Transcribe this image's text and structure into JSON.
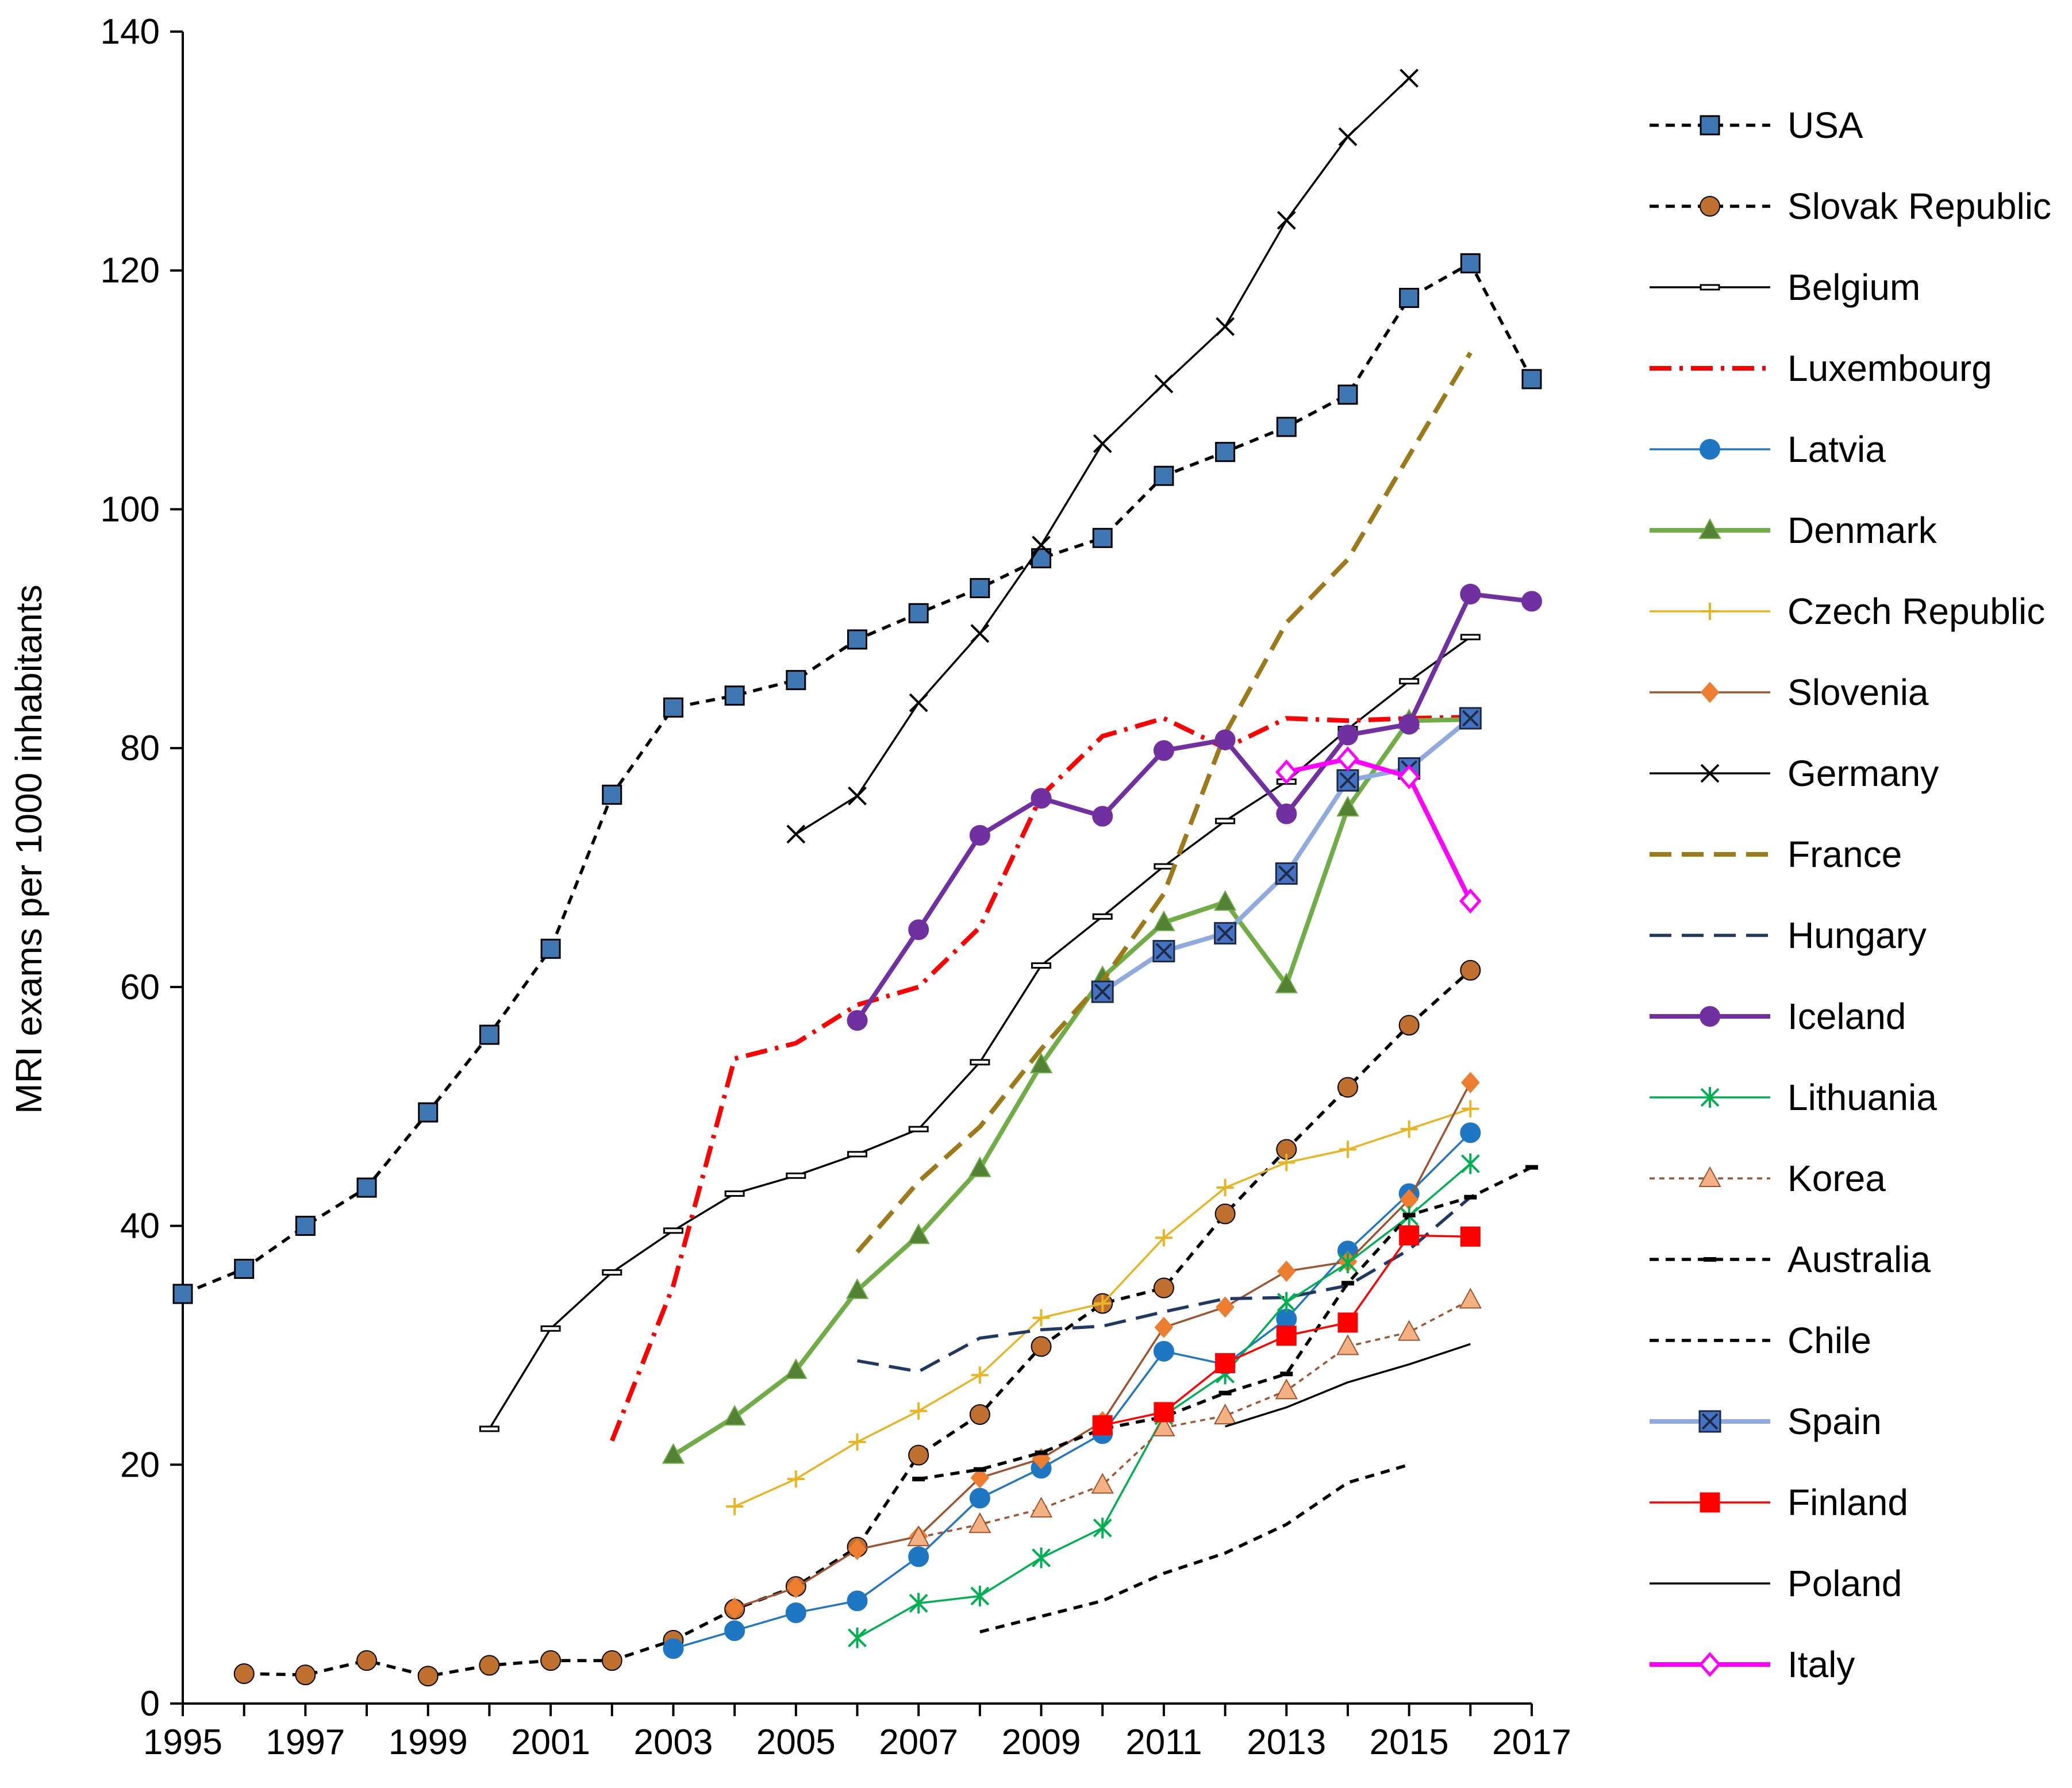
{
  "chart_data": {
    "type": "line",
    "title": "",
    "xlabel": "",
    "ylabel": "MRI exams per 1000 inhabitants",
    "xlim": [
      1995,
      2017
    ],
    "ylim": [
      0,
      140
    ],
    "xticks": [
      1995,
      1997,
      1999,
      2001,
      2003,
      2005,
      2007,
      2009,
      2011,
      2013,
      2015,
      2017
    ],
    "yticks": [
      0,
      20,
      40,
      60,
      80,
      100,
      120,
      140
    ],
    "grid": false,
    "legend": "right",
    "series": [
      {
        "name": "USA",
        "color": "#000000",
        "marker_color": "#3f77b3",
        "dash": "dash",
        "marker": "square",
        "line_width": "medium",
        "points": [
          [
            1995,
            34.3
          ],
          [
            1996,
            36.4
          ],
          [
            1997,
            40.0
          ],
          [
            1998,
            43.2
          ],
          [
            1999,
            49.5
          ],
          [
            2000,
            56.0
          ],
          [
            2001,
            63.2
          ],
          [
            2002,
            76.1
          ],
          [
            2003,
            83.4
          ],
          [
            2004,
            84.4
          ],
          [
            2005,
            85.7
          ],
          [
            2006,
            89.1
          ],
          [
            2007,
            91.3
          ],
          [
            2008,
            93.4
          ],
          [
            2009,
            95.9
          ],
          [
            2010,
            97.6
          ],
          [
            2011,
            102.8
          ],
          [
            2012,
            104.8
          ],
          [
            2013,
            106.9
          ],
          [
            2014,
            109.6
          ],
          [
            2015,
            117.7
          ],
          [
            2016,
            120.6
          ],
          [
            2017,
            110.9
          ]
        ]
      },
      {
        "name": "Slovak Republic",
        "color": "#000000",
        "marker_color": "#c0702e",
        "dash": "dash",
        "marker": "circle",
        "line_width": "medium",
        "points": [
          [
            1996,
            2.5
          ],
          [
            1997,
            2.4
          ],
          [
            1998,
            3.6
          ],
          [
            1999,
            2.3
          ],
          [
            2000,
            3.2
          ],
          [
            2001,
            3.6
          ],
          [
            2002,
            3.6
          ],
          [
            2003,
            5.3
          ],
          [
            2004,
            7.9
          ],
          [
            2005,
            9.8
          ],
          [
            2006,
            13.1
          ],
          [
            2007,
            20.8
          ],
          [
            2008,
            24.2
          ],
          [
            2009,
            29.9
          ],
          [
            2010,
            33.5
          ],
          [
            2011,
            34.8
          ],
          [
            2012,
            41.0
          ],
          [
            2013,
            46.4
          ],
          [
            2014,
            51.6
          ],
          [
            2015,
            56.8
          ],
          [
            2016,
            61.4
          ]
        ]
      },
      {
        "name": "Belgium",
        "color": "#000000",
        "dash": "solid",
        "marker": "dash-bar",
        "line_width": "thin",
        "points": [
          [
            2000,
            23.0
          ],
          [
            2001,
            31.4
          ],
          [
            2002,
            36.1
          ],
          [
            2003,
            39.6
          ],
          [
            2004,
            42.7
          ],
          [
            2005,
            44.2
          ],
          [
            2006,
            46.0
          ],
          [
            2007,
            48.1
          ],
          [
            2008,
            53.7
          ],
          [
            2009,
            61.8
          ],
          [
            2010,
            65.9
          ],
          [
            2011,
            70.1
          ],
          [
            2012,
            73.9
          ],
          [
            2013,
            77.2
          ],
          [
            2014,
            81.6
          ],
          [
            2015,
            85.6
          ],
          [
            2016,
            89.3
          ]
        ]
      },
      {
        "name": "Luxembourg",
        "color": "#ff0000",
        "dash": "dashdot",
        "marker": "none",
        "line_width": "thick",
        "points": [
          [
            2002,
            22.0
          ],
          [
            2003,
            35.0
          ],
          [
            2004,
            54.0
          ],
          [
            2005,
            55.3
          ],
          [
            2006,
            58.5
          ],
          [
            2007,
            60.0
          ],
          [
            2008,
            65.0
          ],
          [
            2009,
            76.0
          ],
          [
            2010,
            81.0
          ],
          [
            2011,
            82.5
          ],
          [
            2012,
            80.0
          ],
          [
            2013,
            82.5
          ],
          [
            2014,
            82.3
          ],
          [
            2015,
            82.5
          ],
          [
            2016,
            82.6
          ]
        ]
      },
      {
        "name": "Latvia",
        "color": "#1f77c4",
        "dash": "solid",
        "marker": "circle",
        "line_width": "thin",
        "points": [
          [
            2003,
            4.6
          ],
          [
            2004,
            6.1
          ],
          [
            2005,
            7.6
          ],
          [
            2006,
            8.6
          ],
          [
            2007,
            12.3
          ],
          [
            2008,
            17.2
          ],
          [
            2009,
            19.7
          ],
          [
            2010,
            22.6
          ],
          [
            2011,
            29.5
          ],
          [
            2012,
            28.4
          ],
          [
            2013,
            32.2
          ],
          [
            2014,
            37.9
          ],
          [
            2015,
            42.7
          ],
          [
            2016,
            47.8
          ]
        ]
      },
      {
        "name": "Denmark",
        "color": "#70ad47",
        "marker_color": "#548235",
        "dash": "solid",
        "marker": "triangle",
        "line_width": "thick",
        "points": [
          [
            2003,
            20.8
          ],
          [
            2004,
            24.0
          ],
          [
            2005,
            27.9
          ],
          [
            2006,
            34.6
          ],
          [
            2007,
            39.2
          ],
          [
            2008,
            44.8
          ],
          [
            2009,
            53.5
          ],
          [
            2010,
            60.8
          ],
          [
            2011,
            65.4
          ],
          [
            2012,
            67.1
          ],
          [
            2013,
            60.2
          ],
          [
            2014,
            75.0
          ],
          [
            2015,
            82.3
          ],
          [
            2016,
            82.4
          ]
        ]
      },
      {
        "name": "Czech Republic",
        "color": "#e8b422",
        "dash": "solid",
        "marker": "plus",
        "line_width": "thin",
        "points": [
          [
            2004,
            16.5
          ],
          [
            2005,
            18.8
          ],
          [
            2006,
            21.9
          ],
          [
            2007,
            24.5
          ],
          [
            2008,
            27.5
          ],
          [
            2009,
            32.3
          ],
          [
            2010,
            33.5
          ],
          [
            2011,
            39.0
          ],
          [
            2012,
            43.2
          ],
          [
            2013,
            45.3
          ],
          [
            2014,
            46.4
          ],
          [
            2015,
            48.1
          ],
          [
            2016,
            49.8
          ]
        ]
      },
      {
        "name": "Slovenia",
        "color": "#a0522d",
        "marker_color": "#ed7d31",
        "dash": "solid",
        "marker": "diamond",
        "line_width": "thin",
        "points": [
          [
            2004,
            8.0
          ],
          [
            2005,
            9.7
          ],
          [
            2006,
            12.9
          ],
          [
            2007,
            14.0
          ],
          [
            2008,
            18.9
          ],
          [
            2009,
            20.5
          ],
          [
            2010,
            23.6
          ],
          [
            2011,
            31.5
          ],
          [
            2012,
            33.2
          ],
          [
            2013,
            36.2
          ],
          [
            2014,
            37.0
          ],
          [
            2015,
            42.2
          ],
          [
            2016,
            52.0
          ]
        ]
      },
      {
        "name": "Germany",
        "color": "#000000",
        "dash": "solid",
        "marker": "x",
        "line_width": "thin",
        "points": [
          [
            2005,
            72.8
          ],
          [
            2006,
            76.0
          ],
          [
            2007,
            83.8
          ],
          [
            2008,
            89.6
          ],
          [
            2009,
            97.0
          ],
          [
            2010,
            105.5
          ],
          [
            2011,
            110.5
          ],
          [
            2012,
            115.3
          ],
          [
            2013,
            124.2
          ],
          [
            2014,
            131.2
          ],
          [
            2015,
            136.1
          ]
        ]
      },
      {
        "name": "France",
        "color": "#9c7a1a",
        "dash": "longdash",
        "marker": "none",
        "line_width": "thick",
        "points": [
          [
            2006,
            37.8
          ],
          [
            2007,
            43.7
          ],
          [
            2008,
            48.3
          ],
          [
            2009,
            54.8
          ],
          [
            2010,
            60.5
          ],
          [
            2011,
            67.8
          ],
          [
            2012,
            81.2
          ],
          [
            2013,
            90.5
          ],
          [
            2014,
            95.8
          ],
          [
            2015,
            104.5
          ],
          [
            2016,
            113.1
          ]
        ]
      },
      {
        "name": "Hungary",
        "color": "#203864",
        "dash": "longdash",
        "marker": "none",
        "line_width": "medium",
        "points": [
          [
            2006,
            28.7
          ],
          [
            2007,
            27.8
          ],
          [
            2008,
            30.6
          ],
          [
            2009,
            31.3
          ],
          [
            2010,
            31.6
          ],
          [
            2011,
            32.8
          ],
          [
            2012,
            33.9
          ],
          [
            2013,
            34.0
          ],
          [
            2014,
            35.0
          ],
          [
            2015,
            38.0
          ],
          [
            2016,
            42.4
          ]
        ]
      },
      {
        "name": "Iceland",
        "color": "#7030a0",
        "dash": "solid",
        "marker": "circle",
        "line_width": "thick",
        "points": [
          [
            2006,
            57.2
          ],
          [
            2007,
            64.8
          ],
          [
            2008,
            72.7
          ],
          [
            2009,
            75.8
          ],
          [
            2010,
            74.3
          ],
          [
            2011,
            79.8
          ],
          [
            2012,
            80.7
          ],
          [
            2013,
            74.5
          ],
          [
            2014,
            81.1
          ],
          [
            2015,
            82.0
          ],
          [
            2016,
            92.9
          ],
          [
            2017,
            92.3
          ]
        ]
      },
      {
        "name": "Lithuania",
        "color": "#00b050",
        "dash": "solid",
        "marker": "asterisk",
        "line_width": "thin",
        "points": [
          [
            2006,
            5.5
          ],
          [
            2007,
            8.4
          ],
          [
            2008,
            9.0
          ],
          [
            2009,
            12.2
          ],
          [
            2010,
            14.7
          ],
          [
            2011,
            24.1
          ],
          [
            2012,
            27.6
          ],
          [
            2013,
            33.6
          ],
          [
            2014,
            36.9
          ],
          [
            2015,
            40.8
          ],
          [
            2016,
            45.2
          ]
        ]
      },
      {
        "name": "Korea",
        "color": "#a0522d",
        "marker_color": "#f4b183",
        "dash": "shortdash",
        "marker": "triangle",
        "line_width": "thin",
        "points": [
          [
            2007,
            13.9
          ],
          [
            2008,
            15.0
          ],
          [
            2009,
            16.3
          ],
          [
            2010,
            18.3
          ],
          [
            2011,
            23.1
          ],
          [
            2012,
            24.1
          ],
          [
            2013,
            26.2
          ],
          [
            2014,
            29.9
          ],
          [
            2015,
            31.1
          ],
          [
            2016,
            33.8
          ]
        ]
      },
      {
        "name": "Australia",
        "color": "#000000",
        "dash": "dash",
        "marker": "small-dash",
        "line_width": "medium",
        "points": [
          [
            2007,
            18.8
          ],
          [
            2008,
            19.6
          ],
          [
            2009,
            21.0
          ],
          [
            2010,
            23.0
          ],
          [
            2011,
            24.0
          ],
          [
            2012,
            26.0
          ],
          [
            2013,
            27.6
          ],
          [
            2014,
            35.2
          ],
          [
            2015,
            40.9
          ],
          [
            2016,
            42.4
          ],
          [
            2017,
            44.9
          ]
        ]
      },
      {
        "name": "Chile",
        "color": "#000000",
        "dash": "dash",
        "marker": "none",
        "line_width": "medium",
        "points": [
          [
            2008,
            6.0
          ],
          [
            2009,
            7.3
          ],
          [
            2010,
            8.6
          ],
          [
            2011,
            10.9
          ],
          [
            2012,
            12.6
          ],
          [
            2013,
            15.0
          ],
          [
            2014,
            18.5
          ],
          [
            2015,
            20.0
          ]
        ]
      },
      {
        "name": "Spain",
        "color": "#8faadc",
        "marker_color": "#4472c4",
        "dash": "solid",
        "marker": "square-x",
        "line_width": "thick",
        "points": [
          [
            2010,
            59.6
          ],
          [
            2011,
            63.0
          ],
          [
            2012,
            64.5
          ],
          [
            2013,
            69.5
          ],
          [
            2014,
            77.3
          ],
          [
            2015,
            78.3
          ],
          [
            2016,
            82.5
          ]
        ]
      },
      {
        "name": "Finland",
        "color": "#ff0000",
        "dash": "solid",
        "marker": "square",
        "line_width": "thin",
        "points": [
          [
            2010,
            23.3
          ],
          [
            2011,
            24.4
          ],
          [
            2012,
            28.5
          ],
          [
            2013,
            30.8
          ],
          [
            2014,
            31.9
          ],
          [
            2015,
            39.2
          ],
          [
            2016,
            39.1
          ]
        ]
      },
      {
        "name": "Poland",
        "color": "#000000",
        "dash": "solid",
        "marker": "none",
        "line_width": "thin",
        "points": [
          [
            2012,
            23.2
          ],
          [
            2013,
            24.8
          ],
          [
            2014,
            26.9
          ],
          [
            2015,
            28.4
          ],
          [
            2016,
            30.1
          ]
        ]
      },
      {
        "name": "Italy",
        "color": "#ff00ff",
        "dash": "solid",
        "marker": "diamond-open",
        "line_width": "thick",
        "points": [
          [
            2013,
            78.0
          ],
          [
            2014,
            79.1
          ],
          [
            2015,
            77.6
          ],
          [
            2016,
            67.2
          ]
        ]
      }
    ]
  }
}
